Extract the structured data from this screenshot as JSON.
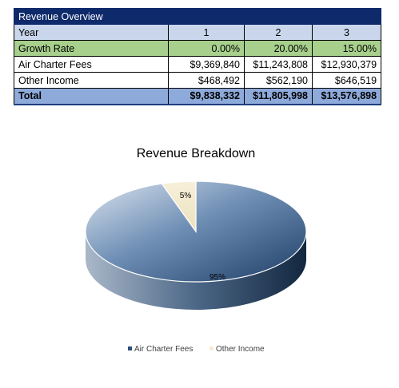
{
  "table": {
    "title": "Revenue Overview",
    "columns": [
      "Year",
      "1",
      "2",
      "3"
    ],
    "rows": [
      {
        "label": "Growth Rate",
        "values": [
          "0.00%",
          "20.00%",
          "15.00%"
        ]
      },
      {
        "label": "Air Charter Fees",
        "values": [
          "$9,369,840",
          "$11,243,808",
          "$12,930,379"
        ]
      },
      {
        "label": "Other Income",
        "values": [
          "$468,492",
          "$562,190",
          "$646,519"
        ]
      },
      {
        "label": "Total",
        "values": [
          "$9,838,332",
          "$11,805,998",
          "$13,576,898"
        ]
      }
    ]
  },
  "chart_data": {
    "type": "pie",
    "title": "Revenue Breakdown",
    "categories": [
      "Air Charter Fees",
      "Other Income"
    ],
    "values": [
      95,
      5
    ],
    "data_labels": [
      "95%",
      "5%"
    ],
    "colors": [
      "#2e4f7a",
      "#f5ecd0"
    ],
    "legend_position": "bottom",
    "three_d": true
  }
}
